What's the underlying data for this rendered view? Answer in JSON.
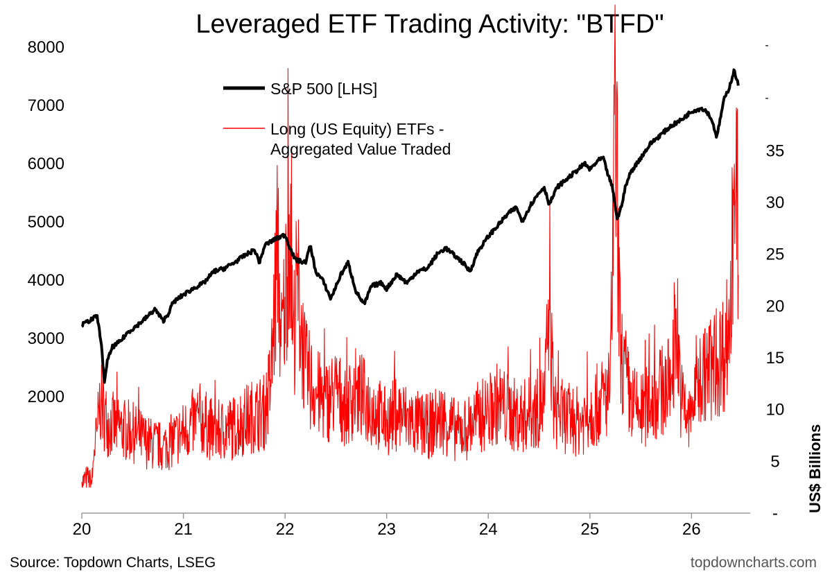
{
  "title": "Leveraged ETF Trading Activity: \"BTFD\"",
  "source": "Source: Topdown Charts, LSEG",
  "brand": "topdowncharts.com",
  "colors": {
    "sp500": "#000000",
    "etf": "#ff0000"
  },
  "chart_data": {
    "type": "line",
    "title": "Leveraged ETF Trading Activity: \"BTFD\"",
    "x_ticks": [
      "20",
      "21",
      "22",
      "23",
      "24",
      "25",
      "26"
    ],
    "x_range": [
      2020.0,
      2026.55
    ],
    "left_axis": {
      "ticks": [
        "8000",
        "7000",
        "6000",
        "5000",
        "4000",
        "3000",
        "2000"
      ],
      "ylim": [
        0,
        8000
      ]
    },
    "right_axis": {
      "label": "US$ Billions",
      "ticks": [
        "35",
        "30",
        "25",
        "20",
        "15",
        "10",
        "5",
        "-"
      ],
      "ylim": [
        0,
        45
      ]
    },
    "legend_placement": "top-left",
    "series": [
      {
        "name": "S&P 500 [LHS]",
        "axis": "left",
        "color": "#000000",
        "points": [
          [
            2020.0,
            3230
          ],
          [
            2020.1,
            3330
          ],
          [
            2020.15,
            3380
          ],
          [
            2020.19,
            2950
          ],
          [
            2020.22,
            2240
          ],
          [
            2020.25,
            2600
          ],
          [
            2020.3,
            2850
          ],
          [
            2020.38,
            2950
          ],
          [
            2020.45,
            3100
          ],
          [
            2020.55,
            3230
          ],
          [
            2020.65,
            3380
          ],
          [
            2020.72,
            3500
          ],
          [
            2020.8,
            3300
          ],
          [
            2020.85,
            3420
          ],
          [
            2020.9,
            3620
          ],
          [
            2021.0,
            3750
          ],
          [
            2021.12,
            3880
          ],
          [
            2021.2,
            3950
          ],
          [
            2021.3,
            4150
          ],
          [
            2021.4,
            4200
          ],
          [
            2021.5,
            4300
          ],
          [
            2021.6,
            4420
          ],
          [
            2021.7,
            4520
          ],
          [
            2021.75,
            4300
          ],
          [
            2021.8,
            4600
          ],
          [
            2021.9,
            4700
          ],
          [
            2022.0,
            4780
          ],
          [
            2022.05,
            4550
          ],
          [
            2022.1,
            4350
          ],
          [
            2022.2,
            4300
          ],
          [
            2022.25,
            4600
          ],
          [
            2022.3,
            4150
          ],
          [
            2022.37,
            4000
          ],
          [
            2022.45,
            3680
          ],
          [
            2022.55,
            4100
          ],
          [
            2022.62,
            4300
          ],
          [
            2022.7,
            3800
          ],
          [
            2022.78,
            3580
          ],
          [
            2022.85,
            3900
          ],
          [
            2022.95,
            3950
          ],
          [
            2023.0,
            3850
          ],
          [
            2023.1,
            4100
          ],
          [
            2023.2,
            3950
          ],
          [
            2023.3,
            4150
          ],
          [
            2023.4,
            4200
          ],
          [
            2023.5,
            4450
          ],
          [
            2023.58,
            4550
          ],
          [
            2023.65,
            4450
          ],
          [
            2023.75,
            4300
          ],
          [
            2023.82,
            4150
          ],
          [
            2023.9,
            4500
          ],
          [
            2024.0,
            4750
          ],
          [
            2024.1,
            4950
          ],
          [
            2024.2,
            5150
          ],
          [
            2024.28,
            5250
          ],
          [
            2024.33,
            5000
          ],
          [
            2024.42,
            5300
          ],
          [
            2024.5,
            5500
          ],
          [
            2024.55,
            5600
          ],
          [
            2024.6,
            5300
          ],
          [
            2024.68,
            5600
          ],
          [
            2024.75,
            5700
          ],
          [
            2024.85,
            5850
          ],
          [
            2024.95,
            6000
          ],
          [
            2025.0,
            5900
          ],
          [
            2025.08,
            6050
          ],
          [
            2025.13,
            6100
          ],
          [
            2025.18,
            5800
          ],
          [
            2025.22,
            5600
          ],
          [
            2025.27,
            5050
          ],
          [
            2025.3,
            5200
          ],
          [
            2025.35,
            5600
          ],
          [
            2025.4,
            5850
          ],
          [
            2025.5,
            6100
          ],
          [
            2025.6,
            6350
          ],
          [
            2025.7,
            6500
          ],
          [
            2025.8,
            6650
          ],
          [
            2025.9,
            6750
          ],
          [
            2026.0,
            6900
          ],
          [
            2026.1,
            6950
          ],
          [
            2026.15,
            6900
          ],
          [
            2026.2,
            6750
          ],
          [
            2026.25,
            6450
          ],
          [
            2026.28,
            6750
          ],
          [
            2026.32,
            7100
          ],
          [
            2026.37,
            7300
          ],
          [
            2026.42,
            7600
          ],
          [
            2026.46,
            7350
          ]
        ]
      },
      {
        "name": "Long (US Equity) ETFs - Aggregated Value Traded",
        "axis": "right",
        "color": "#ff0000",
        "points": [
          [
            2020.0,
            3.0
          ],
          [
            2020.05,
            3.5
          ],
          [
            2020.1,
            3.0
          ],
          [
            2020.12,
            6.0
          ],
          [
            2020.15,
            8.0
          ],
          [
            2020.18,
            11.0
          ],
          [
            2020.25,
            9.0
          ],
          [
            2020.35,
            8.5
          ],
          [
            2020.5,
            8.0
          ],
          [
            2020.65,
            7.0
          ],
          [
            2020.8,
            6.5
          ],
          [
            2021.0,
            8.0
          ],
          [
            2021.15,
            9.5
          ],
          [
            2021.3,
            8.0
          ],
          [
            2021.5,
            8.5
          ],
          [
            2021.65,
            9.5
          ],
          [
            2021.8,
            10.0
          ],
          [
            2021.86,
            13.0
          ],
          [
            2021.93,
            27.0
          ],
          [
            2021.96,
            16.0
          ],
          [
            2022.0,
            21.0
          ],
          [
            2022.04,
            29.0
          ],
          [
            2022.08,
            17.0
          ],
          [
            2022.12,
            23.0
          ],
          [
            2022.2,
            14.0
          ],
          [
            2022.3,
            12.0
          ],
          [
            2022.4,
            11.0
          ],
          [
            2022.5,
            12.0
          ],
          [
            2022.6,
            10.5
          ],
          [
            2022.7,
            12.0
          ],
          [
            2022.8,
            11.0
          ],
          [
            2022.9,
            10.0
          ],
          [
            2023.0,
            9.0
          ],
          [
            2023.1,
            10.0
          ],
          [
            2023.25,
            9.0
          ],
          [
            2023.4,
            8.5
          ],
          [
            2023.55,
            9.5
          ],
          [
            2023.7,
            8.0
          ],
          [
            2023.8,
            8.5
          ],
          [
            2023.9,
            9.5
          ],
          [
            2024.0,
            10.0
          ],
          [
            2024.1,
            11.0
          ],
          [
            2024.2,
            10.0
          ],
          [
            2024.3,
            9.5
          ],
          [
            2024.45,
            10.0
          ],
          [
            2024.55,
            11.0
          ],
          [
            2024.6,
            20.0
          ],
          [
            2024.65,
            10.0
          ],
          [
            2024.75,
            9.5
          ],
          [
            2024.9,
            9.0
          ],
          [
            2025.0,
            10.0
          ],
          [
            2025.1,
            11.0
          ],
          [
            2025.2,
            12.0
          ],
          [
            2025.25,
            40.0
          ],
          [
            2025.3,
            16.0
          ],
          [
            2025.4,
            11.0
          ],
          [
            2025.5,
            10.0
          ],
          [
            2025.6,
            11.0
          ],
          [
            2025.7,
            12.0
          ],
          [
            2025.8,
            13.0
          ],
          [
            2025.85,
            20.0
          ],
          [
            2025.9,
            11.0
          ],
          [
            2025.98,
            9.0
          ],
          [
            2026.05,
            13.0
          ],
          [
            2026.15,
            14.0
          ],
          [
            2026.25,
            15.0
          ],
          [
            2026.32,
            16.0
          ],
          [
            2026.38,
            19.0
          ],
          [
            2026.42,
            33.0
          ],
          [
            2026.44,
            40.0
          ],
          [
            2026.46,
            23.0
          ]
        ]
      }
    ]
  }
}
